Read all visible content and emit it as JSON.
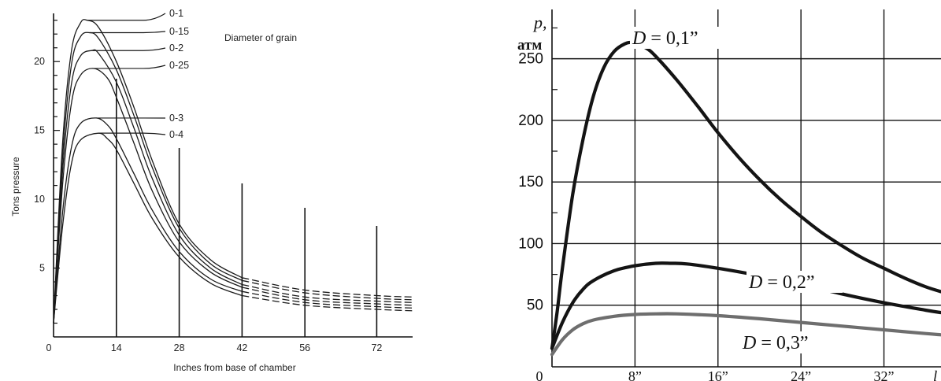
{
  "chart_data": [
    {
      "type": "line",
      "title": "",
      "xlabel": "Inches from base of chamber",
      "ylabel": "Tons pressure",
      "annotation": "Diameter of grain",
      "xlim": [
        0,
        80
      ],
      "ylim": [
        0,
        23.5
      ],
      "x_ticks": [
        "0",
        "14",
        "28",
        "42",
        "56",
        "72"
      ],
      "x_tick_values": [
        0,
        14,
        28,
        42,
        56,
        72
      ],
      "y_ticks": [
        "5",
        "10",
        "15",
        "20"
      ],
      "y_tick_values": [
        5,
        10,
        15,
        20
      ],
      "markers": [
        14,
        28,
        42,
        56,
        72
      ],
      "series": [
        {
          "name": "0-1",
          "peak": 23.0,
          "peak_x": 7.5,
          "x": [
            0,
            2,
            4,
            6,
            7.5,
            10,
            14,
            18,
            22,
            28,
            35,
            42,
            56,
            72,
            80
          ],
          "values": [
            1.0,
            14.0,
            20.8,
            22.8,
            23.0,
            22.5,
            20.0,
            16.6,
            12.8,
            8.2,
            5.6,
            4.3,
            3.4,
            3.0,
            2.9
          ]
        },
        {
          "name": "0-15",
          "peak": 22.1,
          "peak_x": 8.0,
          "x": [
            0,
            2,
            4,
            6,
            8,
            10,
            14,
            18,
            22,
            28,
            35,
            42,
            56,
            72,
            80
          ],
          "values": [
            1.0,
            13.0,
            19.8,
            21.8,
            22.1,
            21.7,
            19.4,
            16.0,
            12.3,
            7.9,
            5.3,
            4.1,
            3.2,
            2.8,
            2.7
          ]
        },
        {
          "name": "0-2",
          "peak": 20.8,
          "peak_x": 8.5,
          "x": [
            0,
            2,
            4,
            6,
            8.5,
            10,
            14,
            18,
            22,
            28,
            35,
            42,
            56,
            72,
            80
          ],
          "values": [
            1.0,
            12.0,
            18.4,
            20.4,
            20.8,
            20.6,
            18.5,
            15.1,
            11.5,
            7.4,
            5.0,
            3.8,
            2.9,
            2.6,
            2.5
          ]
        },
        {
          "name": "0-25",
          "peak": 19.5,
          "peak_x": 9.0,
          "x": [
            0,
            2,
            4,
            6,
            9,
            12,
            14,
            18,
            22,
            28,
            35,
            42,
            56,
            72,
            80
          ],
          "values": [
            1.0,
            11.0,
            17.0,
            19.0,
            19.5,
            18.8,
            17.4,
            14.0,
            10.6,
            6.9,
            4.7,
            3.6,
            2.7,
            2.4,
            2.3
          ]
        },
        {
          "name": "0-3",
          "peak": 15.9,
          "peak_x": 9.5,
          "x": [
            0,
            2,
            4,
            6,
            9.5,
            12,
            14,
            18,
            22,
            28,
            35,
            42,
            56,
            72,
            80
          ],
          "values": [
            1.0,
            9.0,
            13.8,
            15.5,
            15.9,
            15.4,
            14.4,
            11.8,
            9.2,
            6.2,
            4.2,
            3.3,
            2.5,
            2.2,
            2.1
          ]
        },
        {
          "name": "0-4",
          "peak": 14.8,
          "peak_x": 10.0,
          "x": [
            0,
            2,
            4,
            6,
            10,
            12,
            14,
            18,
            22,
            28,
            35,
            42,
            56,
            72,
            80
          ],
          "values": [
            1.0,
            8.0,
            12.6,
            14.3,
            14.8,
            14.4,
            13.6,
            11.1,
            8.6,
            5.8,
            3.9,
            3.0,
            2.3,
            2.0,
            1.9
          ]
        }
      ]
    },
    {
      "type": "line",
      "title": "",
      "ylabel_line1": "p,",
      "ylabel_line2": "атм",
      "xlim": [
        0,
        37.5
      ],
      "ylim": [
        0,
        290
      ],
      "x_ticks": [
        "0",
        "8”",
        "16”",
        "24”",
        "32”"
      ],
      "x_tick_values": [
        0,
        8,
        16,
        24,
        32
      ],
      "x_axis_end_label": "l",
      "y_ticks": [
        "50",
        "100",
        "150",
        "200",
        "250"
      ],
      "y_tick_values": [
        50,
        100,
        150,
        200,
        250
      ],
      "grid": true,
      "series": [
        {
          "name": "D = 0,1”",
          "label_math": "D",
          "label_rest": " = 0,1”",
          "color": "#141414",
          "x": [
            0,
            0.5,
            1,
            2,
            3,
            4,
            5,
            6,
            7,
            7.8,
            9,
            10,
            12,
            14,
            16,
            18,
            20,
            22,
            24,
            26,
            28,
            30,
            32,
            34,
            36,
            37.5
          ],
          "values": [
            15,
            45,
            80,
            140,
            185,
            220,
            243,
            256,
            262,
            263,
            259,
            252,
            233,
            212,
            190,
            170,
            152,
            136,
            122,
            109,
            98,
            88,
            80,
            72,
            65,
            61
          ]
        },
        {
          "name": "D = 0,2”",
          "label_math": "D",
          "label_rest": " = 0,2”",
          "color": "#141414",
          "x": [
            0,
            1,
            2,
            3,
            4,
            6,
            8,
            10,
            11.5,
            13,
            16,
            20,
            24,
            28,
            32,
            36,
            37.5
          ],
          "values": [
            15,
            36,
            52,
            63,
            70,
            78,
            82,
            84,
            84,
            83.5,
            80,
            74,
            67,
            59,
            52,
            46,
            44
          ]
        },
        {
          "name": "D = 0,3”",
          "label_math": "D",
          "label_rest": " = 0,3”",
          "color": "#6e6e6e",
          "x": [
            0,
            1,
            2,
            3,
            4,
            6,
            8,
            10,
            12,
            16,
            20,
            24,
            28,
            32,
            36,
            37.5
          ],
          "values": [
            10,
            22,
            30,
            35,
            38,
            41,
            42.5,
            43,
            43,
            41.5,
            39,
            36,
            33,
            30,
            27,
            26
          ]
        }
      ]
    }
  ]
}
